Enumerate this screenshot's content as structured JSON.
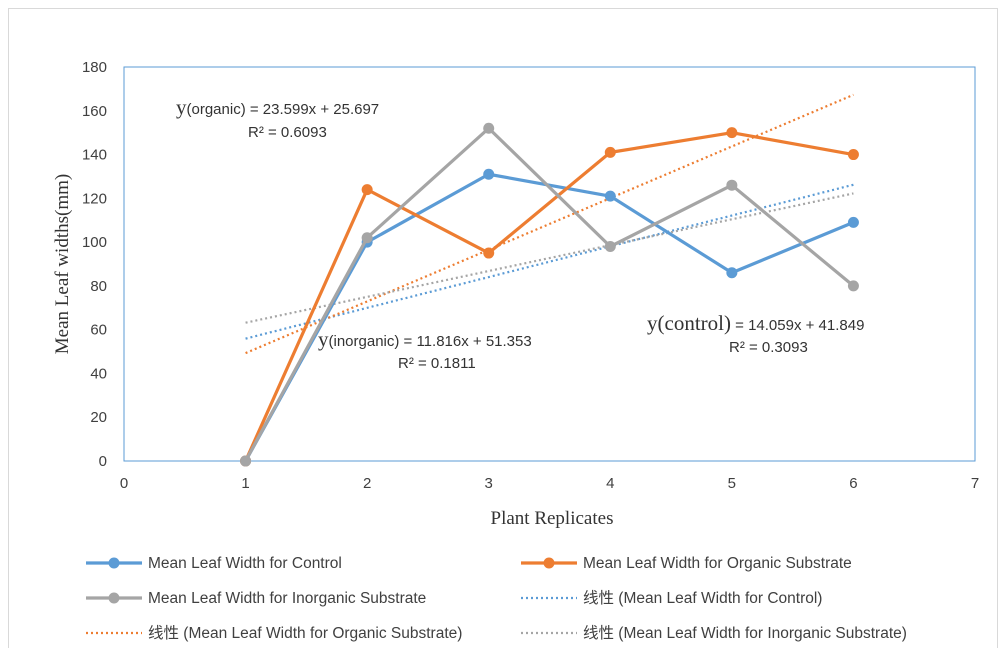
{
  "chart_data": {
    "type": "line",
    "title": "",
    "xlabel": "Plant Replicates",
    "ylabel": "Mean Leaf widths(mm)",
    "xlim": [
      0,
      7
    ],
    "ylim": [
      0,
      180
    ],
    "xticks": [
      "0",
      "1",
      "2",
      "3",
      "4",
      "5",
      "6",
      "7"
    ],
    "yticks": [
      "0",
      "20",
      "40",
      "60",
      "80",
      "100",
      "120",
      "140",
      "160",
      "180"
    ],
    "x": [
      1,
      2,
      3,
      4,
      5,
      6
    ],
    "series": [
      {
        "name": "Mean Leaf Width for Control",
        "color": "#5b9bd5",
        "values": [
          0,
          100,
          131,
          121,
          86,
          109
        ]
      },
      {
        "name": "Mean Leaf Width for Organic Substrate",
        "color": "#ed7d31",
        "values": [
          0,
          124,
          95,
          141,
          150,
          140
        ]
      },
      {
        "name": "Mean Leaf Width for Inorganic Substrate",
        "color": "#a5a5a5",
        "values": [
          0,
          102,
          152,
          98,
          126,
          80
        ]
      }
    ],
    "trendlines": [
      {
        "name": "线性 (Mean Leaf Width for Control)",
        "color": "#5b9bd5",
        "slope": 14.059,
        "intercept": 41.849
      },
      {
        "name": "线性 (Mean Leaf Width for Organic Substrate)",
        "color": "#ed7d31",
        "slope": 23.599,
        "intercept": 25.697
      },
      {
        "name": "线性 (Mean Leaf Width for Inorganic Substrate)",
        "color": "#a5a5a5",
        "slope": 11.816,
        "intercept": 51.353
      }
    ],
    "annotations": {
      "organic": {
        "y_prefix": "y",
        "eq": "(organic) = 23.599x + 25.697",
        "r2": "R² = 0.6093"
      },
      "inorganic": {
        "y_prefix": "y",
        "eq": "(inorganic) = 11.816x + 51.353",
        "r2": "R² = 0.1811"
      },
      "control": {
        "y_prefix": "y(control)",
        "eq": " = 14.059x + 41.849",
        "r2": "R² = 0.3093"
      }
    },
    "grid": false,
    "legend_position": "bottom"
  }
}
